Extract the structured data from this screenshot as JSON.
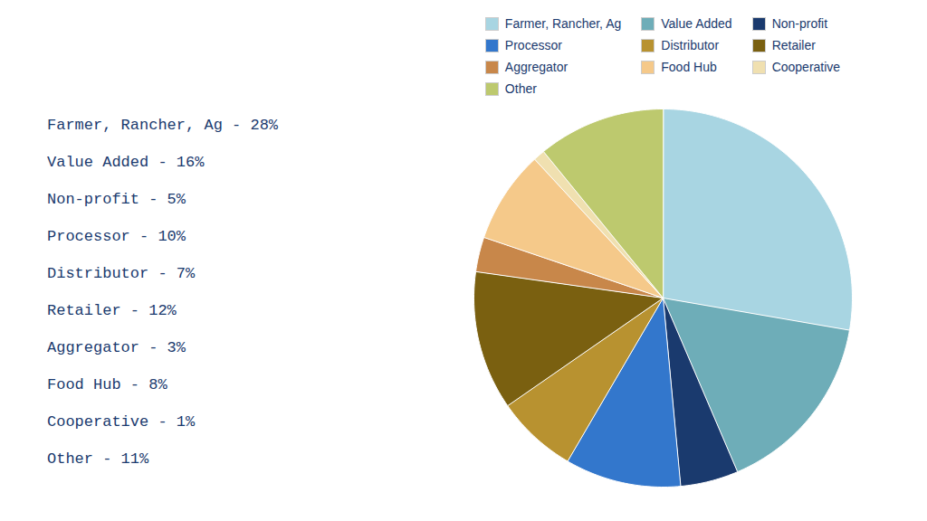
{
  "chart_data": {
    "type": "pie",
    "categories": [
      "Farmer, Rancher, Ag",
      "Value Added",
      "Non-profit",
      "Processor",
      "Distributor",
      "Retailer",
      "Aggregator",
      "Food Hub",
      "Cooperative",
      "Other"
    ],
    "values": [
      28,
      16,
      5,
      10,
      7,
      12,
      3,
      8,
      1,
      11
    ],
    "colors": [
      "#a8d5e2",
      "#6eadb8",
      "#1a3a6e",
      "#3377cc",
      "#b89230",
      "#7a6010",
      "#c8874a",
      "#f5c98a",
      "#f0e0b0",
      "#bdc96e"
    ],
    "legend": "top",
    "annotations": [
      "Farmer, Rancher, Ag - 28%",
      "Value Added - 16%",
      "Non-profit - 5%",
      "Processor - 10%",
      "Distributor - 7%",
      "Retailer - 12%",
      "Aggregator - 3%",
      "Food Hub - 8%",
      "Cooperative - 1%",
      "Other - 11%"
    ]
  }
}
